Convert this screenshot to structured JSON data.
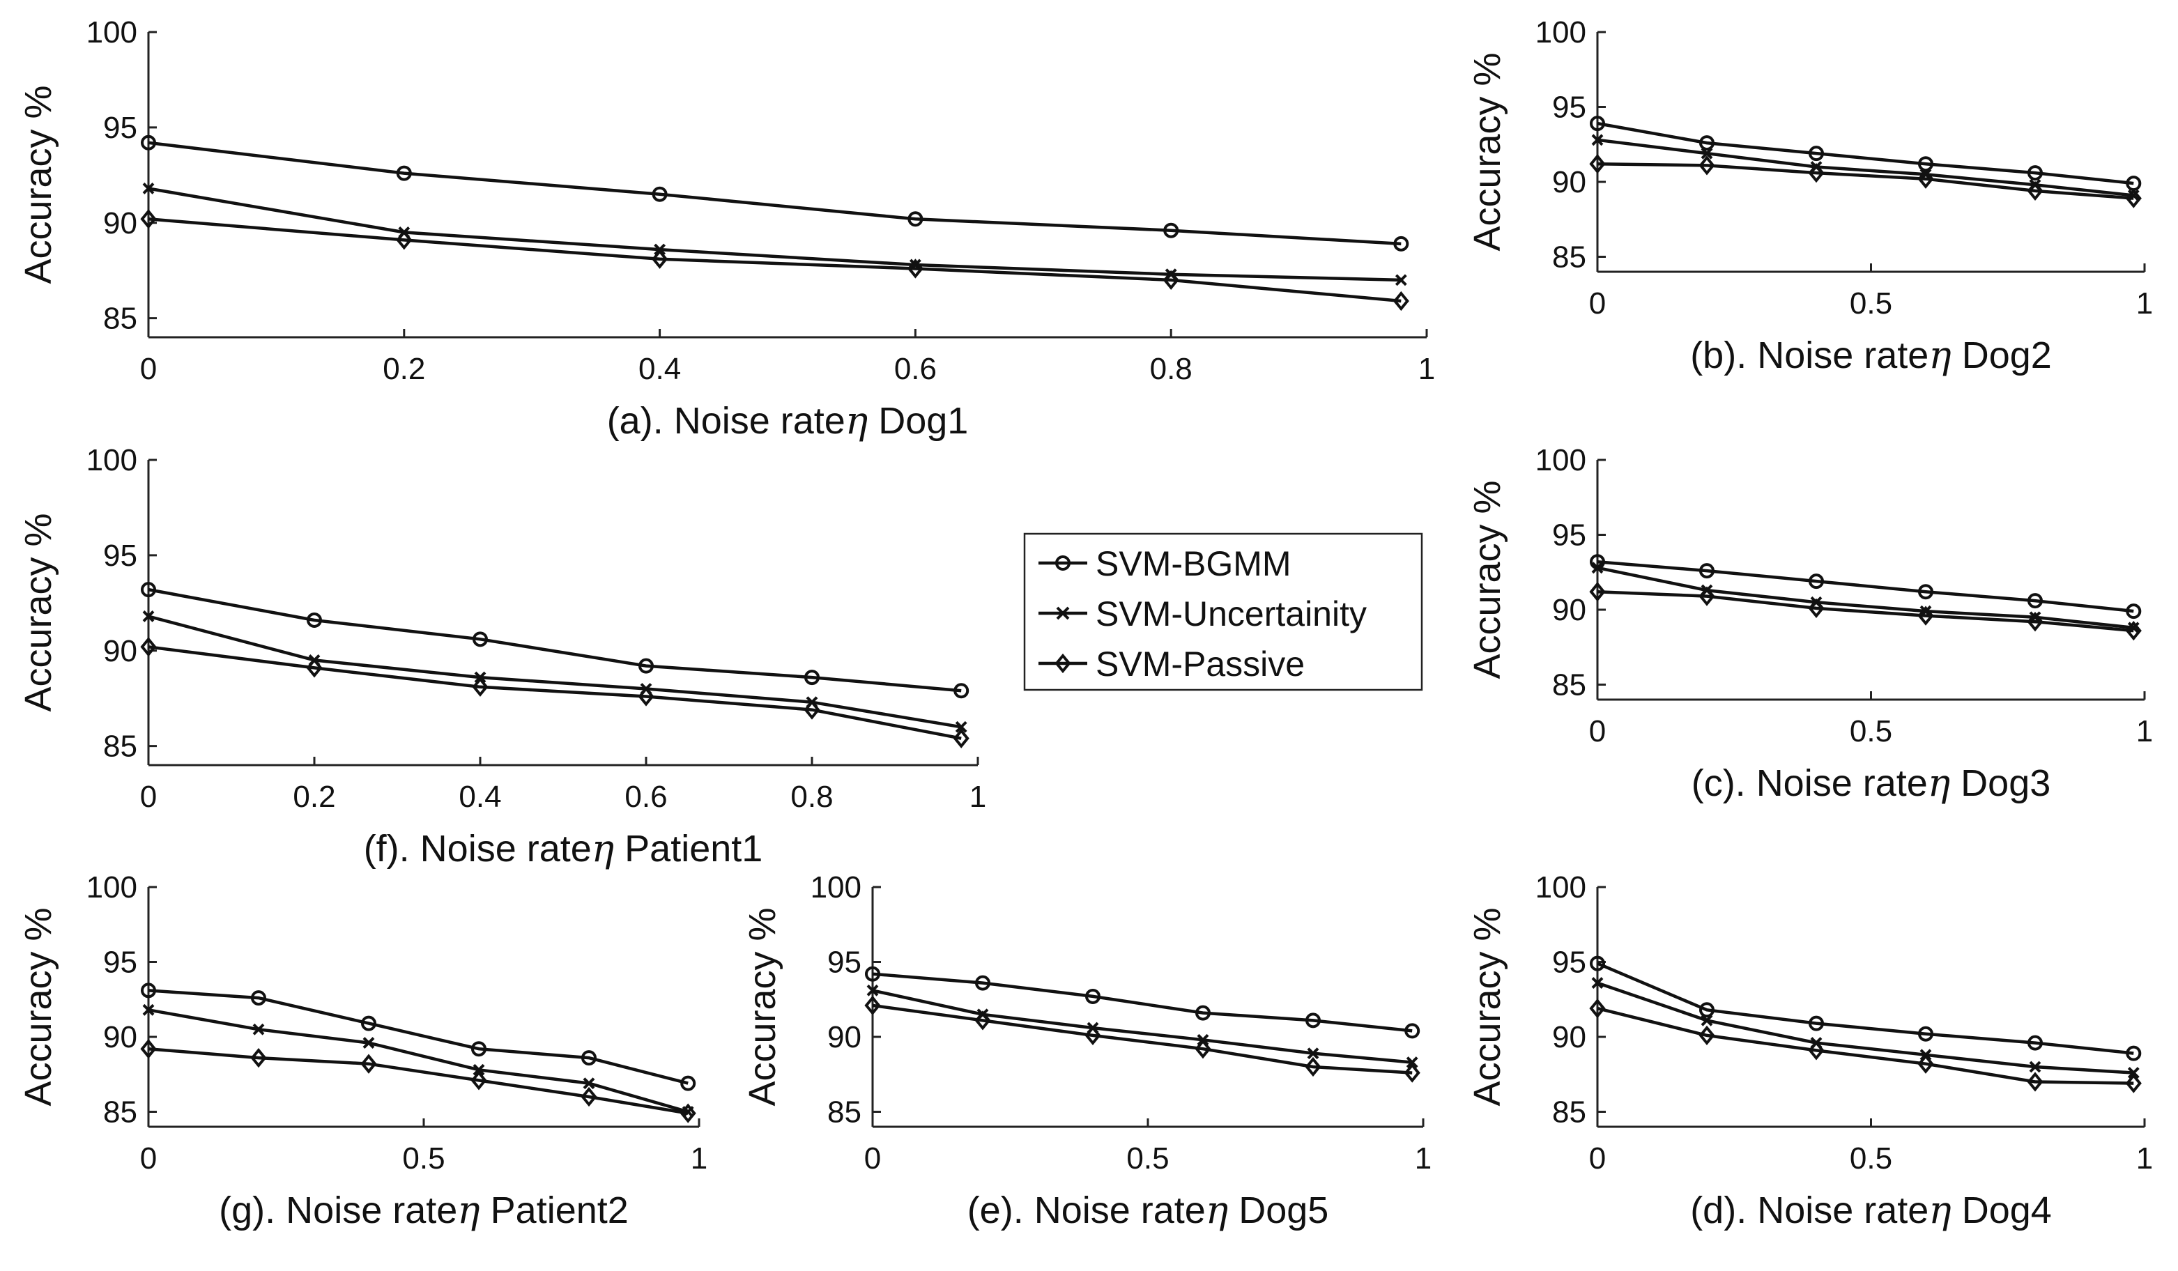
{
  "chart_data": [
    {
      "id": "a",
      "type": "line",
      "caption_prefix": "(a). Noise rate",
      "eta": "η",
      "caption_suffix": " Dog1",
      "ylabel": "Accuracy %",
      "ylim": [
        84,
        100
      ],
      "yticks": [
        85,
        90,
        95,
        100
      ],
      "xlim": [
        0,
        1
      ],
      "xticks": [
        0,
        0.2,
        0.4,
        0.6,
        0.8,
        1
      ],
      "xtick_labels": [
        "0",
        "0.2",
        "0.4",
        "0.6",
        "0.8",
        "1"
      ],
      "x": [
        0,
        0.2,
        0.4,
        0.6,
        0.8,
        0.98
      ],
      "series": [
        {
          "name": "SVM-BGMM",
          "values": [
            94.2,
            92.6,
            91.5,
            90.2,
            89.6,
            88.9
          ]
        },
        {
          "name": "SVM-Uncertainity",
          "values": [
            91.8,
            89.5,
            88.6,
            87.8,
            87.3,
            87.0
          ]
        },
        {
          "name": "SVM-Passive",
          "values": [
            90.2,
            89.1,
            88.1,
            87.6,
            87.0,
            85.9
          ]
        }
      ]
    },
    {
      "id": "b",
      "type": "line",
      "caption_prefix": "(b). Noise rate",
      "eta": "η",
      "caption_suffix": " Dog2",
      "ylabel": "Accuracy %",
      "ylim": [
        84,
        100
      ],
      "yticks": [
        85,
        90,
        95,
        100
      ],
      "xlim": [
        0,
        1
      ],
      "xticks": [
        0,
        0.5,
        1
      ],
      "xtick_labels": [
        "0",
        "0.5",
        "1"
      ],
      "x": [
        0,
        0.2,
        0.4,
        0.6,
        0.8,
        0.98
      ],
      "series": [
        {
          "name": "SVM-BGMM",
          "values": [
            93.9,
            92.6,
            91.9,
            91.2,
            90.6,
            89.9
          ]
        },
        {
          "name": "SVM-Uncertainity",
          "values": [
            92.8,
            91.9,
            91.0,
            90.5,
            89.8,
            89.1
          ]
        },
        {
          "name": "SVM-Passive",
          "values": [
            91.2,
            91.1,
            90.6,
            90.2,
            89.4,
            88.9
          ]
        }
      ]
    },
    {
      "id": "f",
      "type": "line",
      "caption_prefix": "(f). Noise rate",
      "eta": "η",
      "caption_suffix": " Patient1",
      "ylabel": "Accuracy %",
      "ylim": [
        84,
        100
      ],
      "yticks": [
        85,
        90,
        95,
        100
      ],
      "xlim": [
        0,
        1
      ],
      "xticks": [
        0,
        0.2,
        0.4,
        0.6,
        0.8,
        1
      ],
      "xtick_labels": [
        "0",
        "0.2",
        "0.4",
        "0.6",
        "0.8",
        "1"
      ],
      "x": [
        0,
        0.2,
        0.4,
        0.6,
        0.8,
        0.98
      ],
      "series": [
        {
          "name": "SVM-BGMM",
          "values": [
            93.2,
            91.6,
            90.6,
            89.2,
            88.6,
            87.9
          ]
        },
        {
          "name": "SVM-Uncertainity",
          "values": [
            91.8,
            89.5,
            88.6,
            88.0,
            87.3,
            86.0
          ]
        },
        {
          "name": "SVM-Passive",
          "values": [
            90.2,
            89.1,
            88.1,
            87.6,
            86.9,
            85.4
          ]
        }
      ]
    },
    {
      "id": "c",
      "type": "line",
      "caption_prefix": "(c). Noise rate",
      "eta": "η",
      "caption_suffix": " Dog3",
      "ylabel": "Accuracy %",
      "ylim": [
        84,
        100
      ],
      "yticks": [
        85,
        90,
        95,
        100
      ],
      "xlim": [
        0,
        1
      ],
      "xticks": [
        0,
        0.5,
        1
      ],
      "xtick_labels": [
        "0",
        "0.5",
        "1"
      ],
      "x": [
        0,
        0.2,
        0.4,
        0.6,
        0.8,
        0.98
      ],
      "series": [
        {
          "name": "SVM-BGMM",
          "values": [
            93.2,
            92.6,
            91.9,
            91.2,
            90.6,
            89.9
          ]
        },
        {
          "name": "SVM-Uncertainity",
          "values": [
            92.8,
            91.3,
            90.5,
            89.9,
            89.5,
            88.8
          ]
        },
        {
          "name": "SVM-Passive",
          "values": [
            91.2,
            90.9,
            90.1,
            89.6,
            89.2,
            88.6
          ]
        }
      ]
    },
    {
      "id": "g",
      "type": "line",
      "caption_prefix": "(g). Noise rate",
      "eta": "η",
      "caption_suffix": " Patient2",
      "ylabel": "Accuracy %",
      "ylim": [
        84,
        100
      ],
      "yticks": [
        85,
        90,
        95,
        100
      ],
      "xlim": [
        0,
        1
      ],
      "xticks": [
        0,
        0.5,
        1
      ],
      "xtick_labels": [
        "0",
        "0.5",
        "1"
      ],
      "x": [
        0,
        0.2,
        0.4,
        0.6,
        0.8,
        0.98
      ],
      "series": [
        {
          "name": "SVM-BGMM",
          "values": [
            93.1,
            92.6,
            90.9,
            89.2,
            88.6,
            86.9
          ]
        },
        {
          "name": "SVM-Uncertainity",
          "values": [
            91.8,
            90.5,
            89.6,
            87.8,
            86.9,
            85.0
          ]
        },
        {
          "name": "SVM-Passive",
          "values": [
            89.2,
            88.6,
            88.2,
            87.1,
            86.0,
            84.9
          ]
        }
      ]
    },
    {
      "id": "e",
      "type": "line",
      "caption_prefix": "(e). Noise rate",
      "eta": "η",
      "caption_suffix": " Dog5",
      "ylabel": "Accuracy %",
      "ylim": [
        84,
        100
      ],
      "yticks": [
        85,
        90,
        95,
        100
      ],
      "xlim": [
        0,
        1
      ],
      "xticks": [
        0,
        0.5,
        1
      ],
      "xtick_labels": [
        "0",
        "0.5",
        "1"
      ],
      "x": [
        0,
        0.2,
        0.4,
        0.6,
        0.8,
        0.98
      ],
      "series": [
        {
          "name": "SVM-BGMM",
          "values": [
            94.2,
            93.6,
            92.7,
            91.6,
            91.1,
            90.4
          ]
        },
        {
          "name": "SVM-Uncertainity",
          "values": [
            93.1,
            91.5,
            90.6,
            89.8,
            88.9,
            88.3
          ]
        },
        {
          "name": "SVM-Passive",
          "values": [
            92.1,
            91.1,
            90.1,
            89.2,
            88.0,
            87.6
          ]
        }
      ]
    },
    {
      "id": "d",
      "type": "line",
      "caption_prefix": "(d). Noise rate",
      "eta": "η",
      "caption_suffix": " Dog4",
      "ylabel": "Accuracy %",
      "ylim": [
        84,
        100
      ],
      "yticks": [
        85,
        90,
        95,
        100
      ],
      "xlim": [
        0,
        1
      ],
      "xticks": [
        0,
        0.5,
        1
      ],
      "xtick_labels": [
        "0",
        "0.5",
        "1"
      ],
      "x": [
        0,
        0.2,
        0.4,
        0.6,
        0.8,
        0.98
      ],
      "series": [
        {
          "name": "SVM-BGMM",
          "values": [
            94.9,
            91.8,
            90.9,
            90.2,
            89.6,
            88.9
          ]
        },
        {
          "name": "SVM-Uncertainity",
          "values": [
            93.6,
            91.1,
            89.6,
            88.8,
            88.0,
            87.6
          ]
        },
        {
          "name": "SVM-Passive",
          "values": [
            91.9,
            90.1,
            89.1,
            88.2,
            87.0,
            86.9
          ]
        }
      ]
    }
  ],
  "legend": {
    "placement": "center",
    "entries": [
      {
        "name": "SVM-BGMM",
        "marker": "circle"
      },
      {
        "name": "SVM-Uncertainity",
        "marker": "x"
      },
      {
        "name": "SVM-Passive",
        "marker": "diamond"
      }
    ]
  },
  "series_markers": [
    "circle",
    "x",
    "diamond"
  ]
}
